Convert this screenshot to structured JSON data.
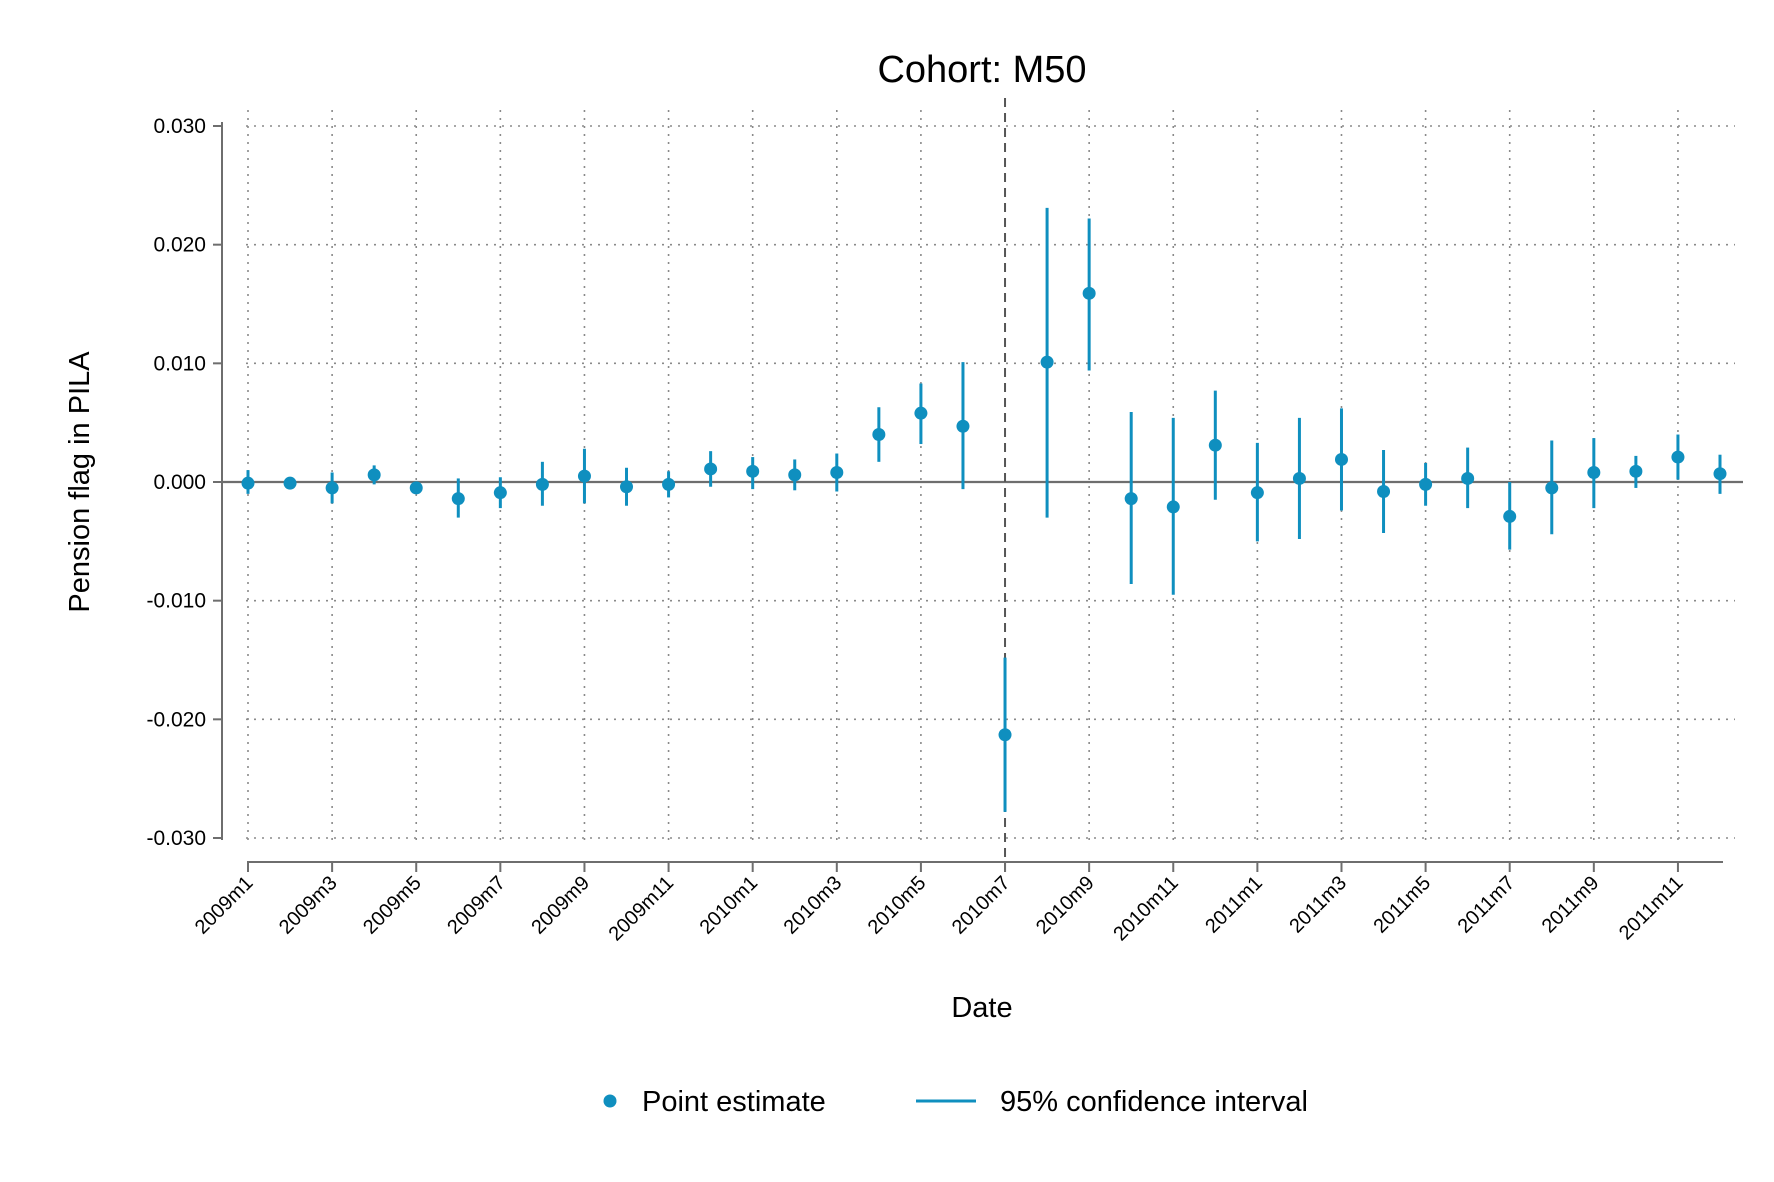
{
  "chart_data": {
    "type": "scatter",
    "title": "Cohort: M50",
    "xlabel": "Date",
    "ylabel": "Pension flag in PILA",
    "ylim": [
      -0.03,
      0.03
    ],
    "yticks": [
      "0.030",
      "0.020",
      "0.010",
      "0.000",
      "-0.010",
      "-0.020",
      "-0.030"
    ],
    "grid": true,
    "reference_line": "2010m7",
    "legend_placement": "bottom",
    "colors": {
      "series": "#0f8fbf",
      "axis": "#6e6e6e"
    },
    "x": [
      "2009m1",
      "2009m2",
      "2009m3",
      "2009m4",
      "2009m5",
      "2009m6",
      "2009m7",
      "2009m8",
      "2009m9",
      "2009m10",
      "2009m11",
      "2009m12",
      "2010m1",
      "2010m2",
      "2010m3",
      "2010m4",
      "2010m5",
      "2010m6",
      "2010m7",
      "2010m8",
      "2010m9",
      "2010m10",
      "2010m11",
      "2010m12",
      "2011m1",
      "2011m2",
      "2011m3",
      "2011m4",
      "2011m5",
      "2011m6",
      "2011m7",
      "2011m8",
      "2011m9",
      "2011m10",
      "2011m11",
      "2011m12"
    ],
    "xtick_labels": [
      "2009m1",
      "2009m3",
      "2009m5",
      "2009m7",
      "2009m9",
      "2009m11",
      "2010m1",
      "2010m3",
      "2010m5",
      "2010m7",
      "2010m9",
      "2010m11",
      "2011m1",
      "2011m3",
      "2011m5",
      "2011m7",
      "2011m9",
      "2011m11"
    ],
    "series": [
      {
        "name": "Point estimate",
        "values": [
          -0.0001,
          -0.0001,
          -0.0005,
          0.0006,
          -0.0005,
          -0.0014,
          -0.0009,
          -0.0002,
          0.0005,
          -0.0004,
          -0.0002,
          0.0011,
          0.0009,
          0.0006,
          0.0008,
          0.004,
          0.0058,
          0.0047,
          -0.0213,
          0.0101,
          0.0159,
          -0.0014,
          -0.0021,
          0.0031,
          -0.0009,
          0.0003,
          0.0019,
          -0.0008,
          -0.0002,
          0.0003,
          -0.0029,
          -0.0005,
          0.0008,
          0.0009,
          0.0021,
          0.0007
        ]
      },
      {
        "name": "95% confidence interval",
        "lower": [
          -0.001,
          -0.0004,
          -0.0018,
          -0.0002,
          -0.001,
          -0.003,
          -0.0022,
          -0.002,
          -0.0018,
          -0.002,
          -0.0013,
          -0.0004,
          -0.0006,
          -0.0007,
          -0.0008,
          0.0017,
          0.0032,
          -0.0006,
          -0.0278,
          -0.003,
          0.0094,
          -0.0086,
          -0.0095,
          -0.0015,
          -0.005,
          -0.0048,
          -0.0024,
          -0.0043,
          -0.002,
          -0.0022,
          -0.0057,
          -0.0044,
          -0.0022,
          -0.0005,
          0.0002,
          -0.001
        ],
        "upper": [
          0.001,
          0.0002,
          0.0008,
          0.0014,
          0.0,
          0.0003,
          0.0004,
          0.0017,
          0.0028,
          0.0012,
          0.0009,
          0.0026,
          0.0021,
          0.0019,
          0.0024,
          0.0063,
          0.0083,
          0.0101,
          -0.0148,
          0.0231,
          0.0222,
          0.0059,
          0.0054,
          0.0077,
          0.0033,
          0.0054,
          0.0062,
          0.0027,
          0.0016,
          0.0029,
          0.0,
          0.0035,
          0.0037,
          0.0022,
          0.004,
          0.0023
        ]
      }
    ]
  }
}
